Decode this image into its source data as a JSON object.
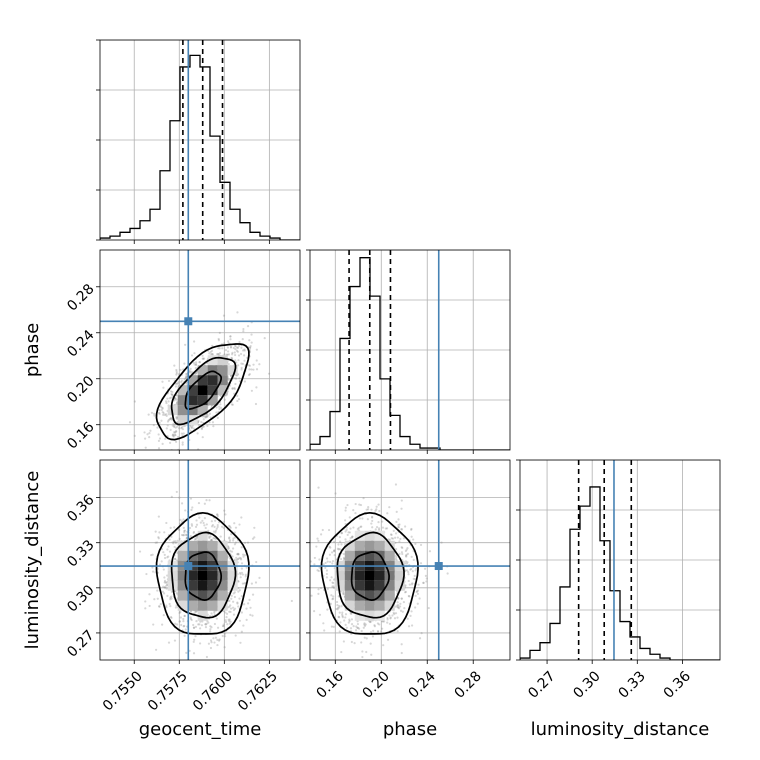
{
  "chart_data": {
    "type": "corner",
    "parameters": [
      "geocent_time",
      "phase",
      "luminosity_distance"
    ],
    "axis_labels": {
      "x": [
        "geocent_time",
        "phase",
        "luminosity_distance"
      ],
      "y": [
        "phase",
        "luminosity_distance"
      ]
    },
    "ranges": {
      "geocent_time": [
        0.7531,
        0.7642
      ],
      "phase": [
        0.138,
        0.312
      ],
      "luminosity_distance": [
        0.252,
        0.385
      ]
    },
    "ticks": {
      "geocent_time": [
        "0.7550",
        "0.7575",
        "0.7600",
        "0.7625"
      ],
      "phase": [
        "0.16",
        "0.20",
        "0.24",
        "0.28"
      ],
      "luminosity_distance": [
        "0.27",
        "0.30",
        "0.33",
        "0.36"
      ]
    },
    "truths": {
      "geocent_time": 0.758,
      "phase": 0.25,
      "luminosity_distance": 0.3145
    },
    "quantiles": {
      "geocent_time": [
        0.7577,
        0.7588,
        0.7599
      ],
      "phase": [
        0.172,
        0.19,
        0.208
      ],
      "luminosity_distance": [
        0.291,
        0.308,
        0.326
      ]
    },
    "histograms": {
      "geocent_time": [
        1,
        2,
        4,
        6,
        10,
        16,
        36,
        62,
        90,
        96,
        90,
        54,
        30,
        16,
        9,
        4,
        2,
        1,
        0,
        0
      ],
      "phase": [
        3,
        7,
        20,
        58,
        85,
        100,
        80,
        37,
        18,
        7,
        3,
        1,
        1,
        0,
        0,
        0,
        0,
        0,
        0,
        0
      ],
      "luminosity_distance": [
        1,
        5,
        9,
        19,
        38,
        68,
        80,
        90,
        62,
        36,
        20,
        12,
        6,
        3,
        1,
        0,
        0,
        0,
        0,
        0
      ]
    },
    "marginal_ylim": [
      0,
      100
    ],
    "grid": true,
    "colors": {
      "truth": "#4682b4",
      "hist": "#000000",
      "scatter": "#8c8c8c",
      "grid": "#b0b0b0"
    }
  }
}
